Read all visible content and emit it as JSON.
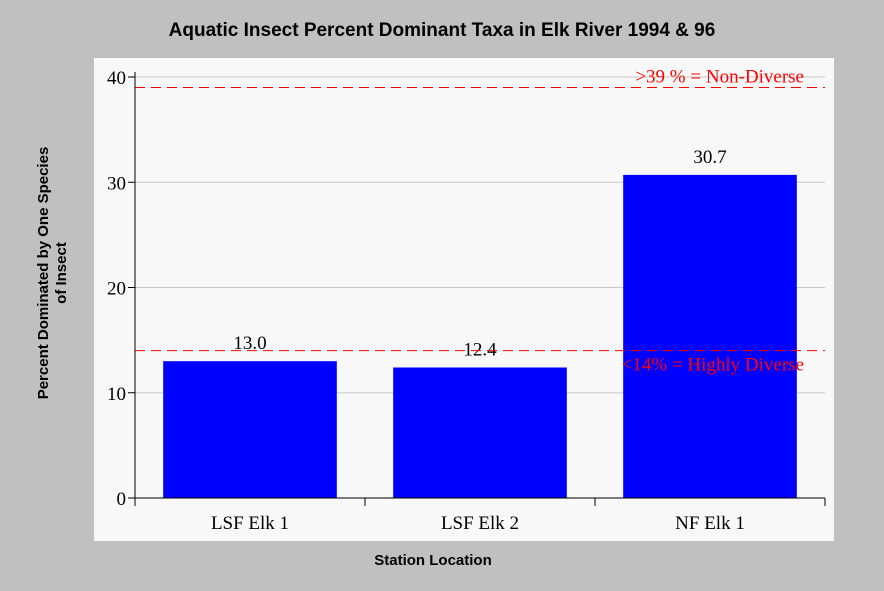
{
  "chart_data": {
    "type": "bar",
    "title": "Aquatic Insect Percent Dominant Taxa in Elk River 1994 & 96",
    "xlabel": "Station Location",
    "ylabel_lines": [
      "Percent Dominated by One Species",
      "of Insect"
    ],
    "categories": [
      "LSF Elk 1",
      "LSF Elk 2",
      "NF Elk 1"
    ],
    "values": [
      13.0,
      12.4,
      30.7
    ],
    "value_labels": [
      "13.0",
      "12.4",
      "30.7"
    ],
    "ylim": [
      0,
      40
    ],
    "yticks": [
      0,
      10,
      20,
      30,
      40
    ],
    "grid": true,
    "bar_color": "#0000ff",
    "reference_lines": [
      {
        "value": 39,
        "label": ">39 % = Non-Diverse",
        "color": "#ff0000"
      },
      {
        "value": 14,
        "label": "<14% = Highly Diverse",
        "color": "#ff0000"
      }
    ]
  }
}
